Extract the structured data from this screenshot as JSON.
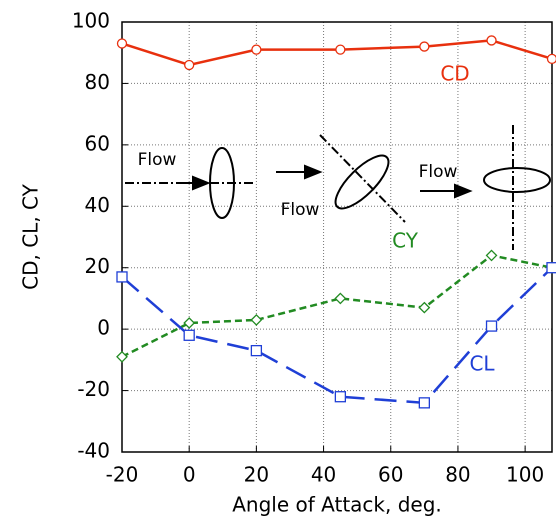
{
  "chart_data": {
    "type": "line",
    "x_label": "Angle of Attack, deg.",
    "y_label": "CD, CL, CY",
    "x": [
      -20,
      0,
      20,
      45,
      70,
      90,
      108
    ],
    "series": [
      {
        "name": "CD",
        "color": "#e8300e",
        "marker": "circle",
        "dash": "solid",
        "values": [
          93,
          86,
          91,
          91,
          92,
          94,
          88
        ]
      },
      {
        "name": "CY",
        "color": "#228b22",
        "marker": "diamond",
        "dash": "dashed",
        "values": [
          -9,
          2,
          3,
          10,
          7,
          24,
          20
        ]
      },
      {
        "name": "CL",
        "color": "#1f3fd6",
        "marker": "square",
        "dash": "long-dashed",
        "values": [
          17,
          -2,
          -7,
          -22,
          -24,
          1,
          20
        ]
      }
    ],
    "xlim": [
      -20,
      108
    ],
    "ylim": [
      -40,
      100
    ],
    "xticks": [
      -20,
      0,
      20,
      40,
      60,
      80,
      100
    ],
    "yticks": [
      -40,
      -20,
      0,
      20,
      40,
      60,
      80,
      100
    ],
    "grid": true,
    "annotations": [
      "Flow",
      "Flow",
      "Flow"
    ]
  }
}
